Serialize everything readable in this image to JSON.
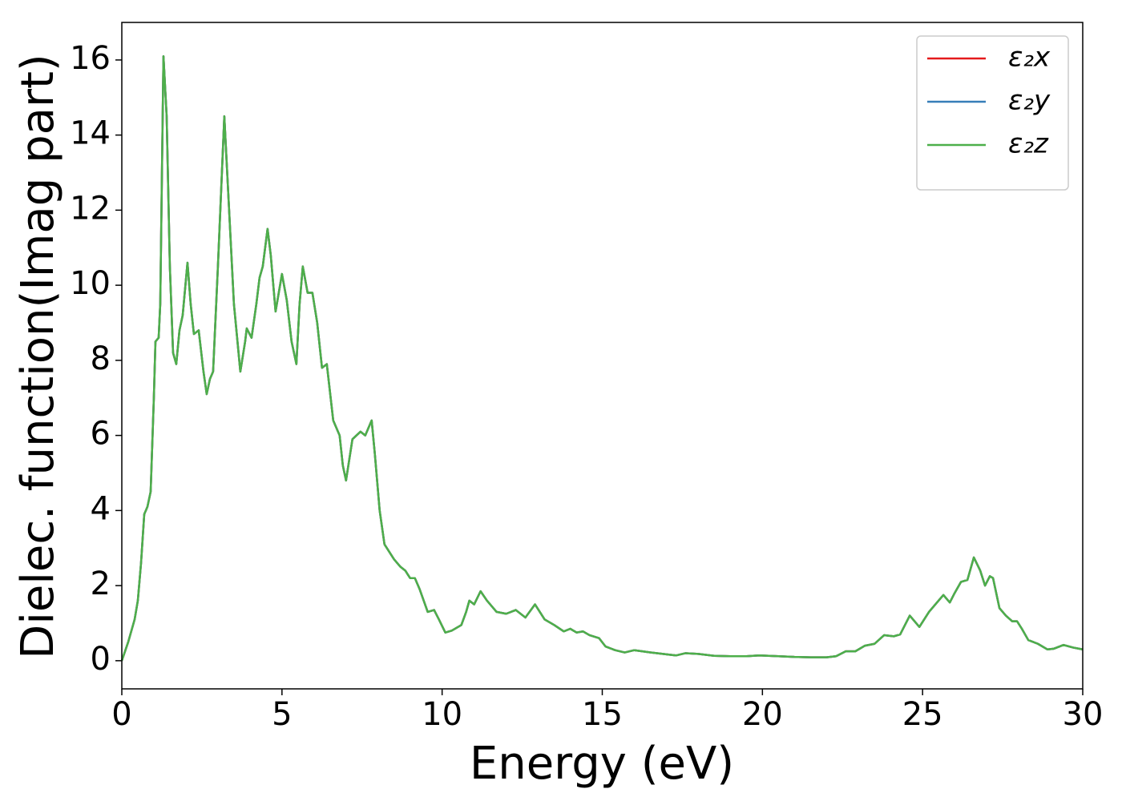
{
  "chart_data": {
    "type": "line",
    "xlabel": "Energy (eV)",
    "ylabel": "Dielec. function(Imag part)",
    "xlim": [
      0,
      30
    ],
    "ylim": [
      -0.75,
      17
    ],
    "xticks": [
      0,
      5,
      10,
      15,
      20,
      25,
      30
    ],
    "yticks": [
      0,
      2,
      4,
      6,
      8,
      10,
      12,
      14,
      16
    ],
    "legend": "upper right",
    "x": [
      0,
      0.2,
      0.4,
      0.5,
      0.6,
      0.7,
      0.8,
      0.9,
      1.0,
      1.05,
      1.15,
      1.2,
      1.3,
      1.4,
      1.5,
      1.6,
      1.7,
      1.8,
      1.9,
      2.05,
      2.15,
      2.25,
      2.4,
      2.55,
      2.65,
      2.75,
      2.85,
      3.0,
      3.2,
      3.35,
      3.5,
      3.7,
      3.85,
      3.9,
      4.05,
      4.2,
      4.3,
      4.4,
      4.55,
      4.65,
      4.8,
      5.0,
      5.15,
      5.3,
      5.45,
      5.55,
      5.65,
      5.8,
      5.95,
      6.1,
      6.25,
      6.4,
      6.6,
      6.8,
      6.9,
      7.0,
      7.2,
      7.45,
      7.6,
      7.8,
      7.9,
      8.05,
      8.2,
      8.5,
      8.7,
      8.85,
      9.0,
      9.15,
      9.3,
      9.55,
      9.75,
      9.9,
      10.1,
      10.3,
      10.6,
      10.75,
      10.85,
      11.0,
      11.2,
      11.4,
      11.7,
      12.0,
      12.3,
      12.6,
      12.9,
      13.2,
      13.5,
      13.8,
      14.0,
      14.2,
      14.4,
      14.6,
      14.9,
      15.1,
      15.4,
      15.7,
      16.0,
      16.5,
      17.0,
      17.3,
      17.6,
      18.0,
      18.5,
      19.0,
      19.5,
      19.9,
      20.5,
      21.0,
      21.5,
      22.0,
      22.3,
      22.6,
      22.9,
      23.2,
      23.5,
      23.8,
      24.1,
      24.3,
      24.6,
      24.9,
      25.2,
      25.5,
      25.65,
      25.85,
      26.0,
      26.2,
      26.4,
      26.6,
      26.8,
      26.95,
      27.1,
      27.2,
      27.4,
      27.6,
      27.8,
      27.95,
      28.1,
      28.3,
      28.6,
      28.9,
      29.1,
      29.4,
      29.7,
      30.0
    ],
    "series": [
      {
        "name": "ε₂x",
        "color": "#e41a1c",
        "values": [
          0,
          0.5,
          1.1,
          1.6,
          2.6,
          3.9,
          4.1,
          4.5,
          7.0,
          8.5,
          8.6,
          9.5,
          16.1,
          14.5,
          10.5,
          8.2,
          7.9,
          8.8,
          9.2,
          10.6,
          9.5,
          8.7,
          8.8,
          7.7,
          7.1,
          7.5,
          7.7,
          10.5,
          14.5,
          12.0,
          9.5,
          7.7,
          8.5,
          8.85,
          8.6,
          9.5,
          10.2,
          10.5,
          11.5,
          10.8,
          9.3,
          10.3,
          9.6,
          8.5,
          7.9,
          9.5,
          10.5,
          9.8,
          9.8,
          9.0,
          7.8,
          7.9,
          6.4,
          6.0,
          5.2,
          4.8,
          5.9,
          6.1,
          6.0,
          6.4,
          5.5,
          4.0,
          3.1,
          2.7,
          2.5,
          2.4,
          2.2,
          2.2,
          1.9,
          1.3,
          1.35,
          1.1,
          0.75,
          0.8,
          0.95,
          1.3,
          1.6,
          1.5,
          1.85,
          1.6,
          1.3,
          1.25,
          1.35,
          1.15,
          1.5,
          1.1,
          0.95,
          0.78,
          0.85,
          0.75,
          0.78,
          0.68,
          0.6,
          0.38,
          0.28,
          0.22,
          0.28,
          0.22,
          0.17,
          0.14,
          0.2,
          0.18,
          0.13,
          0.12,
          0.12,
          0.14,
          0.12,
          0.1,
          0.09,
          0.09,
          0.12,
          0.25,
          0.25,
          0.4,
          0.45,
          0.68,
          0.65,
          0.7,
          1.2,
          0.9,
          1.3,
          1.6,
          1.75,
          1.55,
          1.8,
          2.1,
          2.15,
          2.75,
          2.4,
          2.0,
          2.25,
          2.2,
          1.4,
          1.2,
          1.05,
          1.05,
          0.85,
          0.55,
          0.45,
          0.3,
          0.32,
          0.42,
          0.35,
          0.3
        ]
      },
      {
        "name": "ε₂y",
        "color": "#377eb8",
        "values": [
          0,
          0.5,
          1.1,
          1.6,
          2.6,
          3.9,
          4.1,
          4.5,
          7.0,
          8.5,
          8.6,
          9.5,
          16.1,
          14.5,
          10.5,
          8.2,
          7.9,
          8.8,
          9.2,
          10.6,
          9.5,
          8.7,
          8.8,
          7.7,
          7.1,
          7.5,
          7.7,
          10.5,
          14.5,
          12.0,
          9.5,
          7.7,
          8.5,
          8.85,
          8.6,
          9.5,
          10.2,
          10.5,
          11.5,
          10.8,
          9.3,
          10.3,
          9.6,
          8.5,
          7.9,
          9.5,
          10.5,
          9.8,
          9.8,
          9.0,
          7.8,
          7.9,
          6.4,
          6.0,
          5.2,
          4.8,
          5.9,
          6.1,
          6.0,
          6.4,
          5.5,
          4.0,
          3.1,
          2.7,
          2.5,
          2.4,
          2.2,
          2.2,
          1.9,
          1.3,
          1.35,
          1.1,
          0.75,
          0.8,
          0.95,
          1.3,
          1.6,
          1.5,
          1.85,
          1.6,
          1.3,
          1.25,
          1.35,
          1.15,
          1.5,
          1.1,
          0.95,
          0.78,
          0.85,
          0.75,
          0.78,
          0.68,
          0.6,
          0.38,
          0.28,
          0.22,
          0.28,
          0.22,
          0.17,
          0.14,
          0.2,
          0.18,
          0.13,
          0.12,
          0.12,
          0.14,
          0.12,
          0.1,
          0.09,
          0.09,
          0.12,
          0.25,
          0.25,
          0.4,
          0.45,
          0.68,
          0.65,
          0.7,
          1.2,
          0.9,
          1.3,
          1.6,
          1.75,
          1.55,
          1.8,
          2.1,
          2.15,
          2.75,
          2.4,
          2.0,
          2.25,
          2.2,
          1.4,
          1.2,
          1.05,
          1.05,
          0.85,
          0.55,
          0.45,
          0.3,
          0.32,
          0.42,
          0.35,
          0.3
        ]
      },
      {
        "name": "ε₂z",
        "color": "#4daf4a",
        "values": [
          0,
          0.5,
          1.1,
          1.6,
          2.6,
          3.9,
          4.1,
          4.5,
          7.0,
          8.5,
          8.6,
          9.5,
          16.1,
          14.5,
          10.5,
          8.2,
          7.9,
          8.8,
          9.2,
          10.6,
          9.5,
          8.7,
          8.8,
          7.7,
          7.1,
          7.5,
          7.7,
          10.5,
          14.5,
          12.0,
          9.5,
          7.7,
          8.5,
          8.85,
          8.6,
          9.5,
          10.2,
          10.5,
          11.5,
          10.8,
          9.3,
          10.3,
          9.6,
          8.5,
          7.9,
          9.5,
          10.5,
          9.8,
          9.8,
          9.0,
          7.8,
          7.9,
          6.4,
          6.0,
          5.2,
          4.8,
          5.9,
          6.1,
          6.0,
          6.4,
          5.5,
          4.0,
          3.1,
          2.7,
          2.5,
          2.4,
          2.2,
          2.2,
          1.9,
          1.3,
          1.35,
          1.1,
          0.75,
          0.8,
          0.95,
          1.3,
          1.6,
          1.5,
          1.85,
          1.6,
          1.3,
          1.25,
          1.35,
          1.15,
          1.5,
          1.1,
          0.95,
          0.78,
          0.85,
          0.75,
          0.78,
          0.68,
          0.6,
          0.38,
          0.28,
          0.22,
          0.28,
          0.22,
          0.17,
          0.14,
          0.2,
          0.18,
          0.13,
          0.12,
          0.12,
          0.14,
          0.12,
          0.1,
          0.09,
          0.09,
          0.12,
          0.25,
          0.25,
          0.4,
          0.45,
          0.68,
          0.65,
          0.7,
          1.2,
          0.9,
          1.3,
          1.6,
          1.75,
          1.55,
          1.8,
          2.1,
          2.15,
          2.75,
          2.4,
          2.0,
          2.25,
          2.2,
          1.4,
          1.2,
          1.05,
          1.05,
          0.85,
          0.55,
          0.45,
          0.3,
          0.32,
          0.42,
          0.35,
          0.3
        ]
      }
    ]
  }
}
